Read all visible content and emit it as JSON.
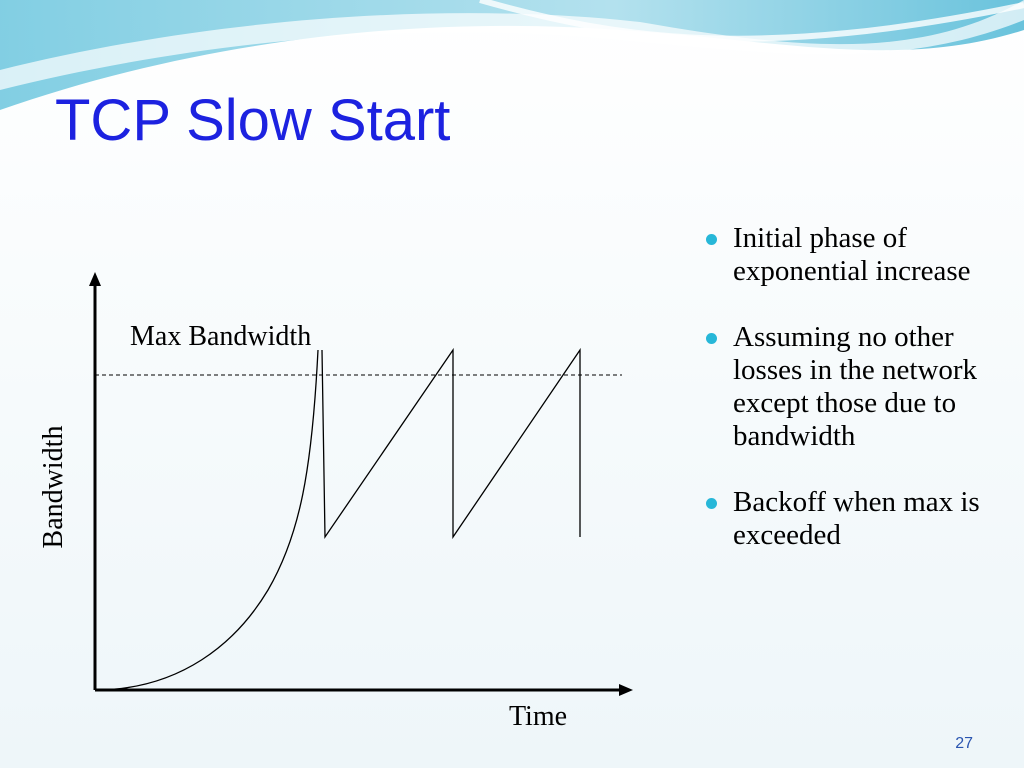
{
  "title": "TCP Slow Start",
  "bullets": [
    "Initial phase of exponential increase",
    "Assuming no other losses in the network except those due to bandwidth",
    "Backoff when max is exceeded"
  ],
  "diagram": {
    "threshold_label": "Max Bandwidth",
    "y_label": "Bandwidth",
    "x_label": "Time"
  },
  "page_number": "27"
}
